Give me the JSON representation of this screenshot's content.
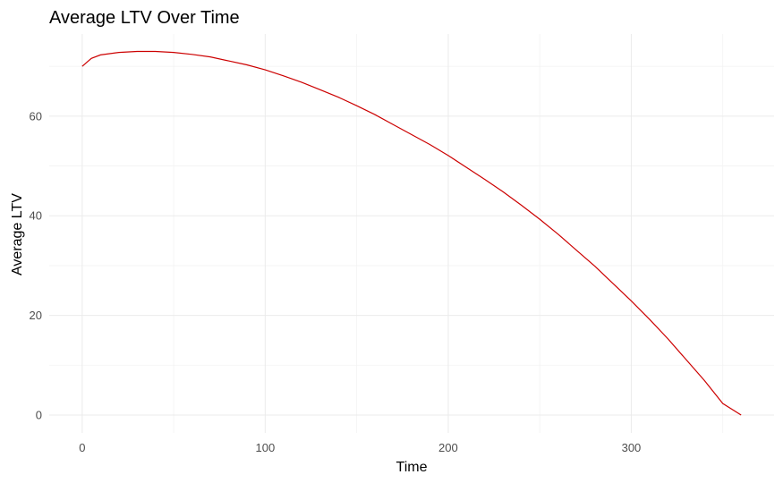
{
  "chart_data": {
    "type": "line",
    "title": "Average LTV Over Time",
    "xlabel": "Time",
    "ylabel": "Average LTV",
    "xlim": [
      -18,
      378
    ],
    "ylim": [
      -3.6,
      76.5
    ],
    "x_ticks": [
      0,
      100,
      200,
      300
    ],
    "x_minor_ticks": [
      50,
      150,
      250,
      350
    ],
    "y_ticks": [
      0,
      20,
      40,
      60
    ],
    "y_minor_ticks": [
      10,
      30,
      50,
      70
    ],
    "grid": true,
    "series": [
      {
        "color": "#cc0000",
        "x": [
          0,
          5,
          10,
          20,
          30,
          40,
          50,
          60,
          70,
          80,
          90,
          100,
          110,
          120,
          130,
          140,
          150,
          160,
          170,
          180,
          190,
          200,
          210,
          220,
          230,
          240,
          250,
          260,
          270,
          280,
          290,
          300,
          310,
          320,
          330,
          340,
          350,
          360
        ],
        "y": [
          70.0,
          71.6,
          72.3,
          72.8,
          73.0,
          73.0,
          72.8,
          72.4,
          71.9,
          71.1,
          70.3,
          69.3,
          68.1,
          66.8,
          65.3,
          63.8,
          62.1,
          60.3,
          58.3,
          56.3,
          54.3,
          52.1,
          49.7,
          47.3,
          44.8,
          42.1,
          39.3,
          36.3,
          33.1,
          29.9,
          26.4,
          22.9,
          19.2,
          15.3,
          11.1,
          6.9,
          2.3,
          0.0
        ]
      }
    ]
  }
}
